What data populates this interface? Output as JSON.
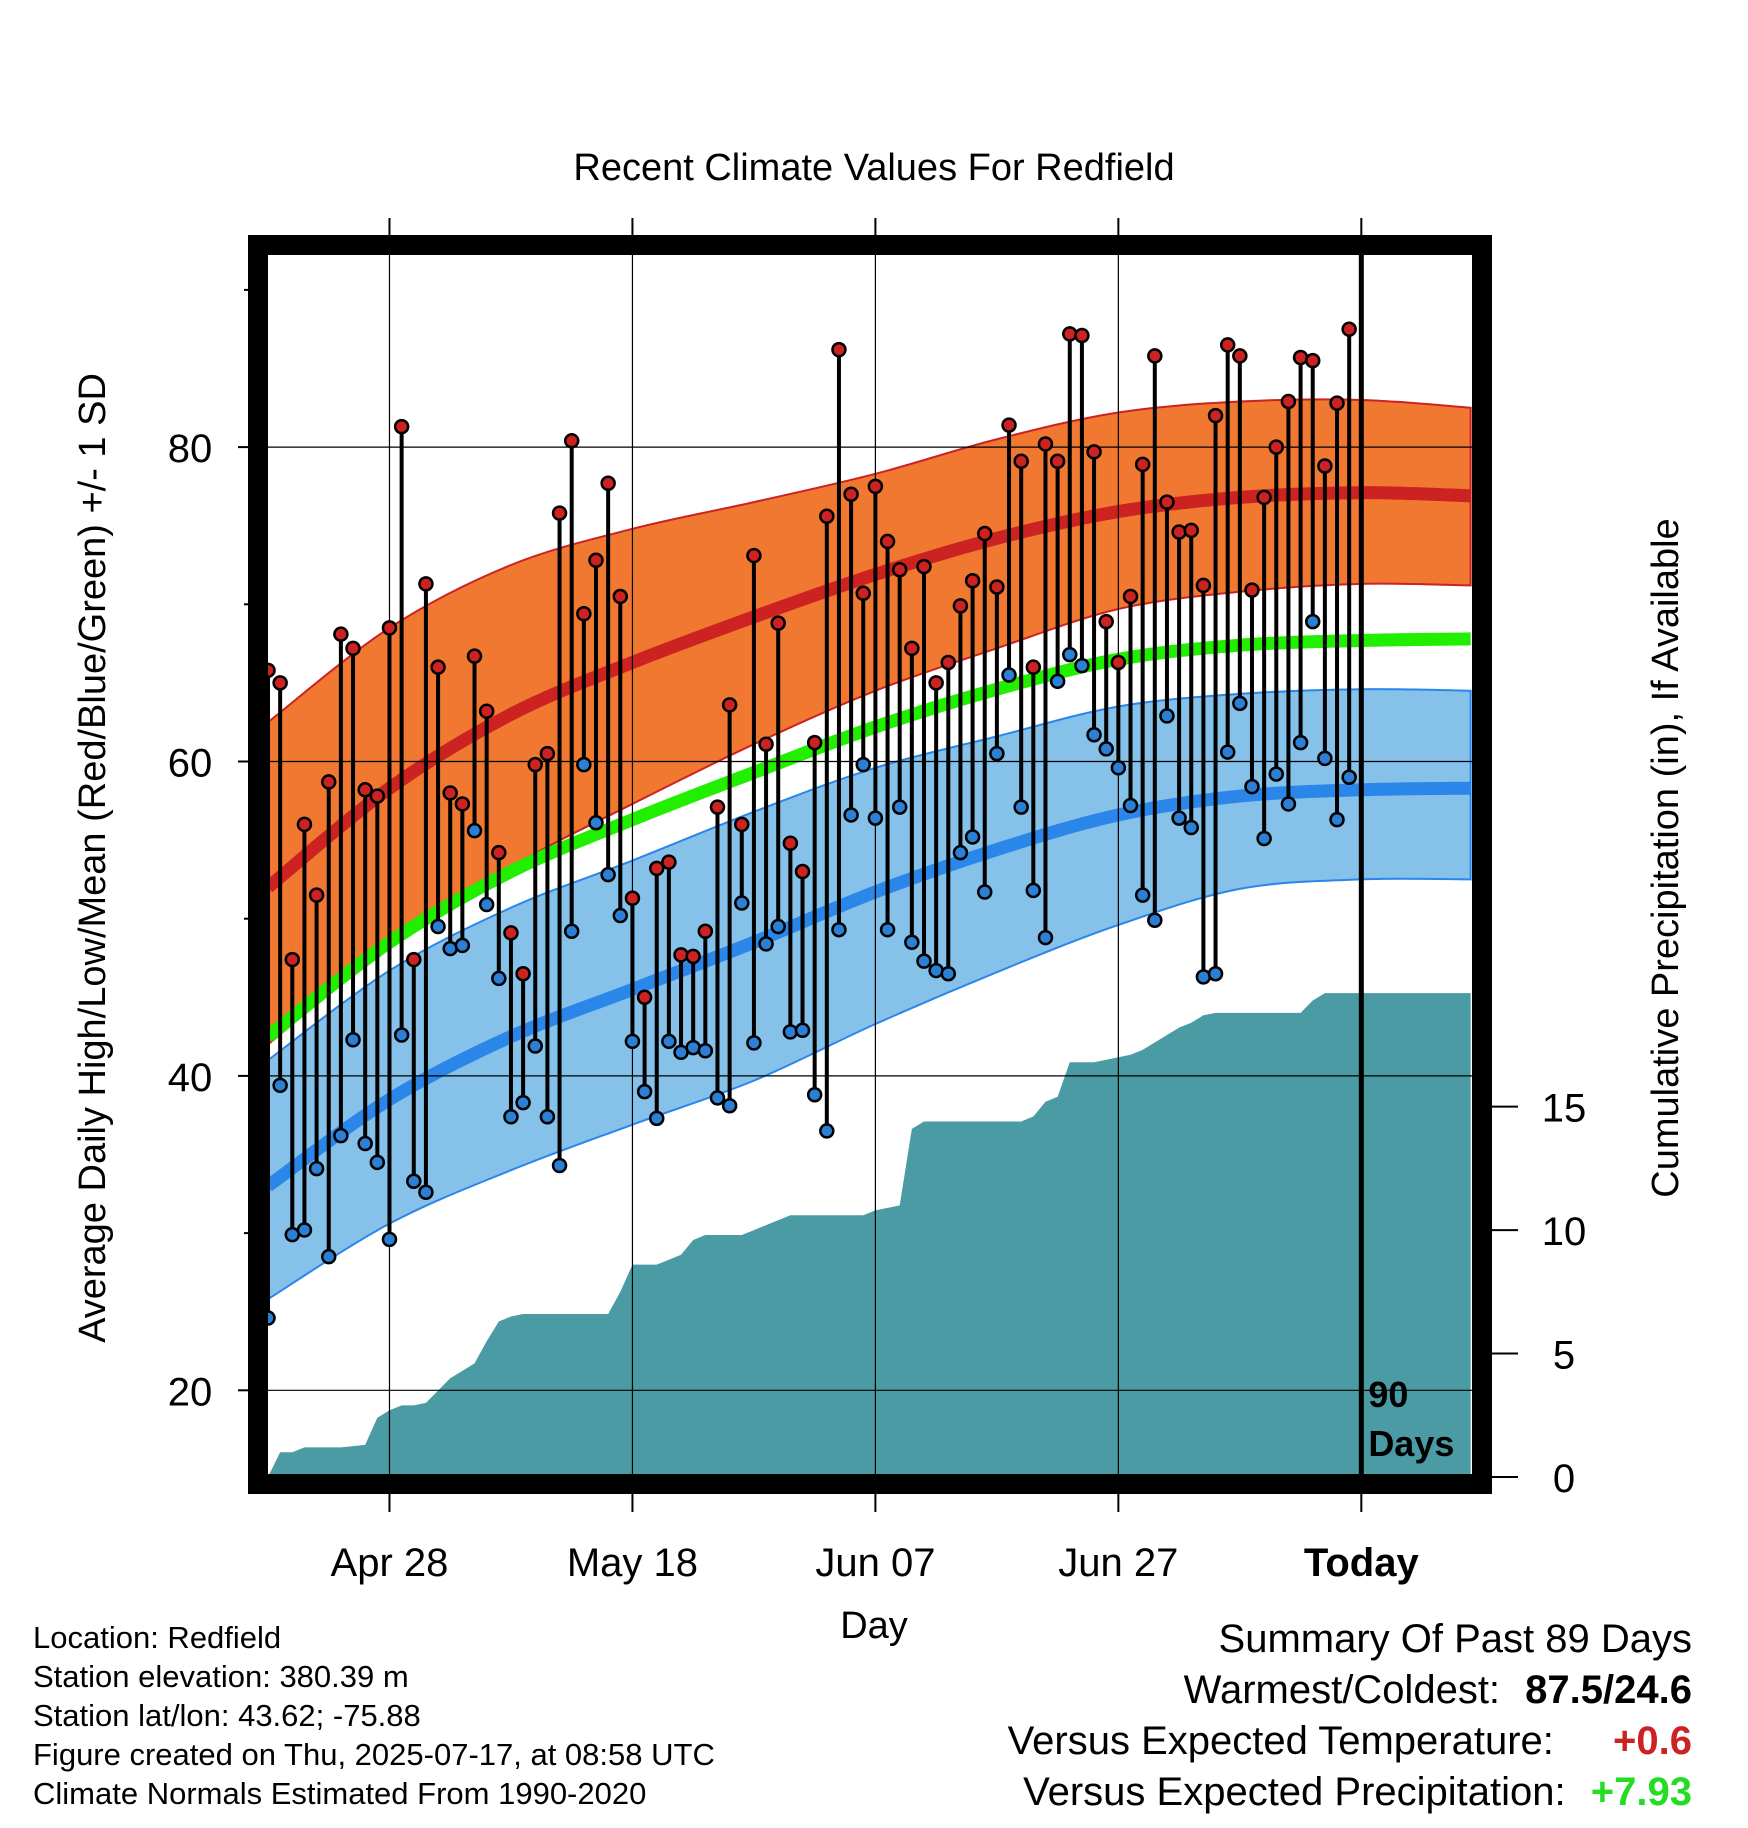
{
  "chart_data": {
    "type": "line",
    "title": "Recent Climate Values For Redfield",
    "xlabel": "Day",
    "ylabel": "Average Daily High/Low/Mean (Red/Blue/Green) +/- 1 SD",
    "y2label": "Cumulative Precipitation (in), If Available",
    "x_range_days": [
      -90,
      9
    ],
    "x_ticks": [
      {
        "label": "Apr 28",
        "day": -80
      },
      {
        "label": "May 18",
        "day": -60
      },
      {
        "label": "Jun 07",
        "day": -40
      },
      {
        "label": "Jun 27",
        "day": -20
      },
      {
        "label": "Today",
        "day": 0
      }
    ],
    "ylim": [
      14.7,
      92.5
    ],
    "y_ticks_major": [
      20,
      40,
      60,
      80
    ],
    "y_ticks_minor": [
      30,
      50,
      70,
      90
    ],
    "y2lim": [
      0,
      31.5
    ],
    "y2_ticks": [
      0,
      5,
      10,
      15
    ],
    "today_marker": {
      "label_line1": "90",
      "label_line2": "Days"
    },
    "normals": {
      "day": [
        -90,
        -80,
        -70,
        -60,
        -50,
        -40,
        -30,
        -20,
        -10,
        0,
        9
      ],
      "high_mean": [
        52.0,
        58.3,
        63.0,
        66.3,
        69.2,
        71.9,
        74.2,
        75.9,
        76.8,
        77.1,
        76.9
      ],
      "high_plus_sd": [
        62.5,
        68.5,
        72.5,
        74.8,
        76.5,
        78.3,
        80.5,
        82.2,
        82.9,
        83.0,
        82.5
      ],
      "high_minus_sd": [
        42.0,
        48.3,
        53.3,
        57.3,
        61.1,
        64.5,
        67.2,
        69.7,
        70.8,
        71.3,
        71.2
      ],
      "mean_mean": [
        42.5,
        48.5,
        53.0,
        56.3,
        59.3,
        62.2,
        64.6,
        66.5,
        67.4,
        67.7,
        67.8
      ],
      "low_mean": [
        33.0,
        38.5,
        42.5,
        45.5,
        48.5,
        51.7,
        54.4,
        56.6,
        57.8,
        58.2,
        58.3
      ],
      "low_plus_sd": [
        41.0,
        46.7,
        50.7,
        53.7,
        56.8,
        59.6,
        61.6,
        63.5,
        64.3,
        64.6,
        64.5
      ],
      "low_minus_sd": [
        25.8,
        30.6,
        34.0,
        36.9,
        39.7,
        43.3,
        46.6,
        49.6,
        51.9,
        52.5,
        52.5
      ]
    },
    "series": [
      {
        "name": "Daily High",
        "color": "#cc2222",
        "days_start": -90,
        "values": [
          65.8,
          65.0,
          47.4,
          56.0,
          51.5,
          58.7,
          68.1,
          67.2,
          58.2,
          57.8,
          68.5,
          81.3,
          47.4,
          71.3,
          66.0,
          58.0,
          57.3,
          66.7,
          63.2,
          54.2,
          49.1,
          46.5,
          59.8,
          60.5,
          75.8,
          80.4,
          69.4,
          72.8,
          77.7,
          70.5,
          51.3,
          45.0,
          53.2,
          53.6,
          47.7,
          47.6,
          49.2,
          57.1,
          63.6,
          56.0,
          73.1,
          61.1,
          68.8,
          54.8,
          53.0,
          61.2,
          75.6,
          86.2,
          77.0,
          70.7,
          77.5,
          74.0,
          72.2,
          67.2,
          72.4,
          65.0,
          66.3,
          69.9,
          71.5,
          74.5,
          71.1,
          81.4,
          79.1,
          66.0,
          80.2,
          79.1,
          87.2,
          87.1,
          79.7,
          68.9,
          66.3,
          70.5,
          78.9,
          85.8,
          76.5,
          74.6,
          74.7,
          71.2,
          82.0,
          86.5,
          85.8,
          70.9,
          76.8,
          80.0,
          82.9,
          85.7,
          85.5,
          78.8,
          82.8,
          87.5
        ]
      },
      {
        "name": "Daily Low",
        "color": "#2b7fd4",
        "days_start": -90,
        "values": [
          24.6,
          39.4,
          29.9,
          30.2,
          34.1,
          28.5,
          36.2,
          42.3,
          35.7,
          34.5,
          29.6,
          42.6,
          33.3,
          32.6,
          49.5,
          48.1,
          48.3,
          55.6,
          50.9,
          46.2,
          37.4,
          38.3,
          41.9,
          37.4,
          34.3,
          49.2,
          59.8,
          56.1,
          52.8,
          50.2,
          42.2,
          39.0,
          37.3,
          42.2,
          41.5,
          41.8,
          41.6,
          38.6,
          38.1,
          51.0,
          42.1,
          48.4,
          49.5,
          42.8,
          42.9,
          38.8,
          36.5,
          49.3,
          56.6,
          59.8,
          56.4,
          49.3,
          57.1,
          48.5,
          47.3,
          46.7,
          46.5,
          54.2,
          55.2,
          51.7,
          60.5,
          65.5,
          57.1,
          51.8,
          48.8,
          65.1,
          66.8,
          66.1,
          61.7,
          60.8,
          59.6,
          57.2,
          51.5,
          49.9,
          62.9,
          56.4,
          55.8,
          46.3,
          46.5,
          60.6,
          63.7,
          58.4,
          55.1,
          59.2,
          57.3,
          61.2,
          68.9,
          60.2,
          56.3,
          59.0
        ]
      },
      {
        "name": "Cumulative Precipitation",
        "color": "#4a9ba3",
        "axis": "right",
        "days": [
          -90,
          -89,
          -88,
          -87,
          -86,
          -85,
          -84,
          -83,
          -82,
          -81,
          -80,
          -79,
          -78,
          -77,
          -76,
          -75,
          -74,
          -73,
          -72,
          -71,
          -70,
          -69,
          -68,
          -67,
          -66,
          -65,
          -64,
          -63,
          -62,
          -61,
          -60,
          -59,
          -58,
          -57,
          -56,
          -55,
          -54,
          -53,
          -52,
          -51,
          -50,
          -49,
          -48,
          -47,
          -46,
          -45,
          -44,
          -43,
          -42,
          -41,
          -40,
          -39,
          -38,
          -37,
          -36,
          -35,
          -34,
          -33,
          -32,
          -31,
          -30,
          -29,
          -28,
          -27,
          -26,
          -25,
          -24,
          -23,
          -22,
          -21,
          -20,
          -19,
          -18,
          -17,
          -16,
          -15,
          -14,
          -13,
          -12,
          -11,
          -10,
          -9,
          -8,
          -7,
          -6,
          -5,
          -4,
          -3,
          -2,
          -1,
          0,
          9
        ],
        "values": [
          0.0,
          1.0,
          1.0,
          1.2,
          1.2,
          1.2,
          1.2,
          1.25,
          1.3,
          2.4,
          2.7,
          2.9,
          2.9,
          3.0,
          3.5,
          4.0,
          4.3,
          4.6,
          5.5,
          6.3,
          6.5,
          6.6,
          6.6,
          6.6,
          6.6,
          6.6,
          6.6,
          6.6,
          6.6,
          7.5,
          8.6,
          8.6,
          8.6,
          8.8,
          9.0,
          9.6,
          9.8,
          9.8,
          9.8,
          9.8,
          10.0,
          10.2,
          10.4,
          10.6,
          10.6,
          10.6,
          10.6,
          10.6,
          10.6,
          10.6,
          10.8,
          10.9,
          11.0,
          14.1,
          14.4,
          14.4,
          14.4,
          14.4,
          14.4,
          14.4,
          14.4,
          14.4,
          14.4,
          14.6,
          15.2,
          15.4,
          16.8,
          16.8,
          16.8,
          16.9,
          17.0,
          17.1,
          17.3,
          17.6,
          17.9,
          18.2,
          18.4,
          18.7,
          18.8,
          18.8,
          18.8,
          18.8,
          18.8,
          18.8,
          18.8,
          18.8,
          19.3,
          19.6,
          19.6,
          19.6,
          19.6,
          19.6
        ]
      }
    ]
  },
  "info": {
    "location": "Location: Redfield",
    "elevation": "Station elevation: 380.39 m",
    "latlon": "Station lat/lon: 43.62; -75.88",
    "created": "Figure created on Thu, 2025-07-17, at 08:58 UTC",
    "normals": "Climate Normals Estimated From 1990-2020"
  },
  "summary": {
    "title": "Summary Of Past 89 Days",
    "warmest_label": "Warmest/Coldest:",
    "warmest_value": "87.5/24.6",
    "temp_label": "Versus Expected Temperature:",
    "temp_value": "+0.6",
    "temp_color": "#cc2222",
    "precip_label": "Versus Expected Precipitation:",
    "precip_value": "+7.93",
    "precip_color": "#22dd22"
  },
  "colors": {
    "high_band": "#f07830",
    "high_line": "#cc2222",
    "mean_line": "#22ee00",
    "low_band": "#85c1e9",
    "low_line": "#2b86ea",
    "precip_fill": "#4a9ba3"
  }
}
